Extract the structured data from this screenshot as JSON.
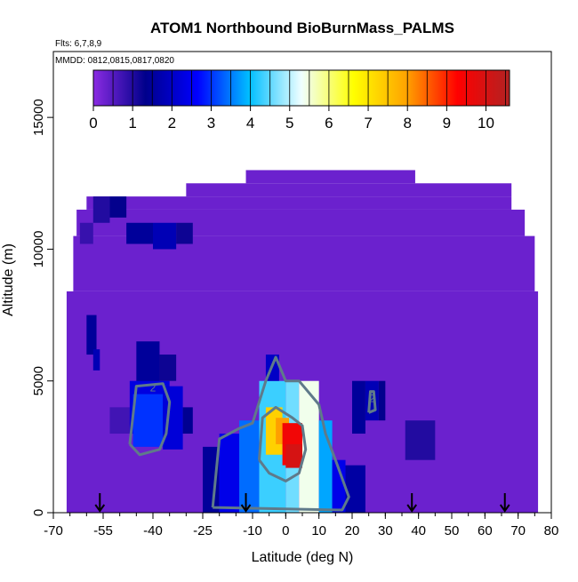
{
  "title": "ATOM1 Northbound BioBurnMass_PALMS",
  "flights_note": "Flts: 6,7,8,9",
  "dates_note": "MMDD: 0812,0815,0817,0820",
  "colors": {
    "background_fill": "#8a2be2",
    "colorbar_stops": [
      "#8a2be2",
      "#00008b",
      "#0000ff",
      "#00bfff",
      "#f0ffff",
      "#ffff00",
      "#ffa500",
      "#ff0000",
      "#b22222"
    ],
    "contour_line": "#5f7a8a",
    "arrow": "#000000"
  },
  "chart_data": {
    "type": "heatmap",
    "title": "ATOM1 Northbound BioBurnMass_PALMS",
    "xlabel": "Latitude (deg N)",
    "ylabel": "Altitude (m)",
    "xlim": [
      -70,
      80
    ],
    "ylim": [
      0,
      17500
    ],
    "x_ticks": [
      -70,
      -55,
      -40,
      -25,
      -10,
      0,
      10,
      20,
      30,
      40,
      50,
      60,
      70,
      80
    ],
    "x_tick_labels": [
      "-70",
      "-55",
      "-40",
      "-25",
      "-10",
      "0",
      "10",
      "20",
      "30",
      "40",
      "50",
      "60",
      "70",
      "80"
    ],
    "y_ticks": [
      0,
      5000,
      10000,
      15000
    ],
    "y_tick_labels": [
      "0",
      "5000",
      "10000",
      "15000"
    ],
    "colorbar": {
      "range": [
        0,
        10.6
      ],
      "ticks": [
        0,
        1,
        2,
        3,
        4,
        5,
        6,
        7,
        8,
        9,
        10
      ],
      "tick_labels": [
        "0",
        "1",
        "2",
        "3",
        "4",
        "5",
        "6",
        "7",
        "8",
        "9",
        "10"
      ]
    },
    "data_coverage": [
      {
        "x0": -66,
        "x1": 76,
        "y0": 0,
        "y1": 8400,
        "value": 0.3
      },
      {
        "x0": -64,
        "x1": 75,
        "y0": 8400,
        "y1": 10500,
        "value": 0.3
      },
      {
        "x0": -63,
        "x1": 72,
        "y0": 10500,
        "y1": 11500,
        "value": 0.3
      },
      {
        "x0": -60,
        "x1": 68,
        "y0": 11500,
        "y1": 12000,
        "value": 0.3
      },
      {
        "x0": -30,
        "x1": 68,
        "y0": 12000,
        "y1": 12500,
        "value": 0.3
      },
      {
        "x0": -12,
        "x1": 39,
        "y0": 12500,
        "y1": 13000,
        "value": 0.3
      }
    ],
    "cells": [
      {
        "x0": -58,
        "x1": -53,
        "y0": 11000,
        "y1": 12000,
        "value": 1.0
      },
      {
        "x0": -53,
        "x1": -48,
        "y0": 11200,
        "y1": 12000,
        "value": 1.3
      },
      {
        "x0": -48,
        "x1": -40,
        "y0": 10200,
        "y1": 11000,
        "value": 1.5
      },
      {
        "x0": -40,
        "x1": -33,
        "y0": 10000,
        "y1": 11000,
        "value": 1.8
      },
      {
        "x0": -33,
        "x1": -28,
        "y0": 10200,
        "y1": 11000,
        "value": 1.2
      },
      {
        "x0": -62,
        "x1": -58,
        "y0": 10200,
        "y1": 11000,
        "value": 0.8
      },
      {
        "x0": -60,
        "x1": -57,
        "y0": 6000,
        "y1": 7500,
        "value": 1.5
      },
      {
        "x0": -58,
        "x1": -56,
        "y0": 5400,
        "y1": 6200,
        "value": 1.8
      },
      {
        "x0": -45,
        "x1": -38,
        "y0": 4500,
        "y1": 6500,
        "value": 1.5
      },
      {
        "x0": -38,
        "x1": -33,
        "y0": 5000,
        "y1": 6000,
        "value": 1.2
      },
      {
        "x0": -53,
        "x1": -46,
        "y0": 3000,
        "y1": 4000,
        "value": 0.7
      },
      {
        "x0": -47,
        "x1": -35,
        "y0": 3000,
        "y1": 5000,
        "value": 2.3
      },
      {
        "x0": -46,
        "x1": -37,
        "y0": 2500,
        "y1": 4500,
        "value": 3.0
      },
      {
        "x0": -37,
        "x1": -31,
        "y0": 2400,
        "y1": 4800,
        "value": 2.2
      },
      {
        "x0": -31,
        "x1": -28,
        "y0": 3000,
        "y1": 4000,
        "value": 1.4
      },
      {
        "x0": -25,
        "x1": -20,
        "y0": 0,
        "y1": 2500,
        "value": 1.5
      },
      {
        "x0": -20,
        "x1": -14,
        "y0": 0,
        "y1": 3000,
        "value": 2.4
      },
      {
        "x0": -14,
        "x1": -7,
        "y0": 0,
        "y1": 3500,
        "value": 3.4
      },
      {
        "x0": -8,
        "x1": 0,
        "y0": 0,
        "y1": 5000,
        "value": 4.3
      },
      {
        "x0": -6,
        "x1": -2,
        "y0": 5000,
        "y1": 6000,
        "value": 2.0
      },
      {
        "x0": 0,
        "x1": 4,
        "y0": 0,
        "y1": 5000,
        "value": 4.6
      },
      {
        "x0": 4,
        "x1": 10,
        "y0": 0,
        "y1": 5000,
        "value": 5.4
      },
      {
        "x0": 10,
        "x1": 14,
        "y0": 0,
        "y1": 3500,
        "value": 3.8
      },
      {
        "x0": 14,
        "x1": 18,
        "y0": 0,
        "y1": 2000,
        "value": 2.4
      },
      {
        "x0": 18,
        "x1": 24,
        "y0": 0,
        "y1": 1800,
        "value": 1.6
      },
      {
        "x0": 20,
        "x1": 24,
        "y0": 3000,
        "y1": 5000,
        "value": 1.5
      },
      {
        "x0": 24,
        "x1": 28,
        "y0": 3500,
        "y1": 5000,
        "value": 1.8
      },
      {
        "x0": 28,
        "x1": 30,
        "y0": 3500,
        "y1": 5000,
        "value": 1.3
      },
      {
        "x0": 36,
        "x1": 45,
        "y0": 2000,
        "y1": 3500,
        "value": 1.0
      },
      {
        "x0": -6,
        "x1": -1,
        "y0": 2200,
        "y1": 4000,
        "value": 7.3
      },
      {
        "x0": -3,
        "x1": 1,
        "y0": 2600,
        "y1": 3600,
        "value": 8.0
      },
      {
        "x0": -1,
        "x1": 5,
        "y0": 1800,
        "y1": 3400,
        "value": 9.5
      },
      {
        "x0": 0,
        "x1": 5,
        "y0": 1700,
        "y1": 2600,
        "value": 10.0
      }
    ],
    "contours": [
      {
        "level": 2,
        "points": [
          [
            -47,
            2600
          ],
          [
            -45,
            4800
          ],
          [
            -37,
            4900
          ],
          [
            -35,
            4200
          ],
          [
            -36,
            3000
          ],
          [
            -38,
            2400
          ],
          [
            -44,
            2200
          ],
          [
            -47,
            2600
          ]
        ]
      },
      {
        "level": 2,
        "points": [
          [
            -22,
            200
          ],
          [
            -20,
            2800
          ],
          [
            -14,
            3200
          ],
          [
            -10,
            3400
          ],
          [
            -6,
            5000
          ],
          [
            -3,
            5900
          ],
          [
            0,
            5000
          ],
          [
            4,
            5000
          ],
          [
            10,
            4100
          ],
          [
            12,
            3000
          ],
          [
            15,
            2000
          ],
          [
            19,
            600
          ],
          [
            17,
            100
          ],
          [
            -22,
            200
          ]
        ]
      },
      {
        "level": 6,
        "points": [
          [
            -8,
            2000
          ],
          [
            -7,
            3600
          ],
          [
            -3,
            4000
          ],
          [
            2,
            3600
          ],
          [
            5,
            3300
          ],
          [
            6,
            2400
          ],
          [
            4,
            1500
          ],
          [
            0,
            1200
          ],
          [
            -5,
            1500
          ],
          [
            -8,
            2000
          ]
        ]
      },
      {
        "level": 2,
        "points": [
          [
            25,
            3800
          ],
          [
            25.5,
            4600
          ],
          [
            26.5,
            4600
          ],
          [
            27,
            3900
          ],
          [
            25,
            3800
          ]
        ]
      }
    ],
    "contour_labels": [
      {
        "x": -40,
        "y": 4600,
        "text": "2"
      },
      {
        "x": 26,
        "y": 4200,
        "text": "2"
      }
    ],
    "arrow_latitudes": [
      -56,
      -12,
      38,
      66
    ]
  }
}
